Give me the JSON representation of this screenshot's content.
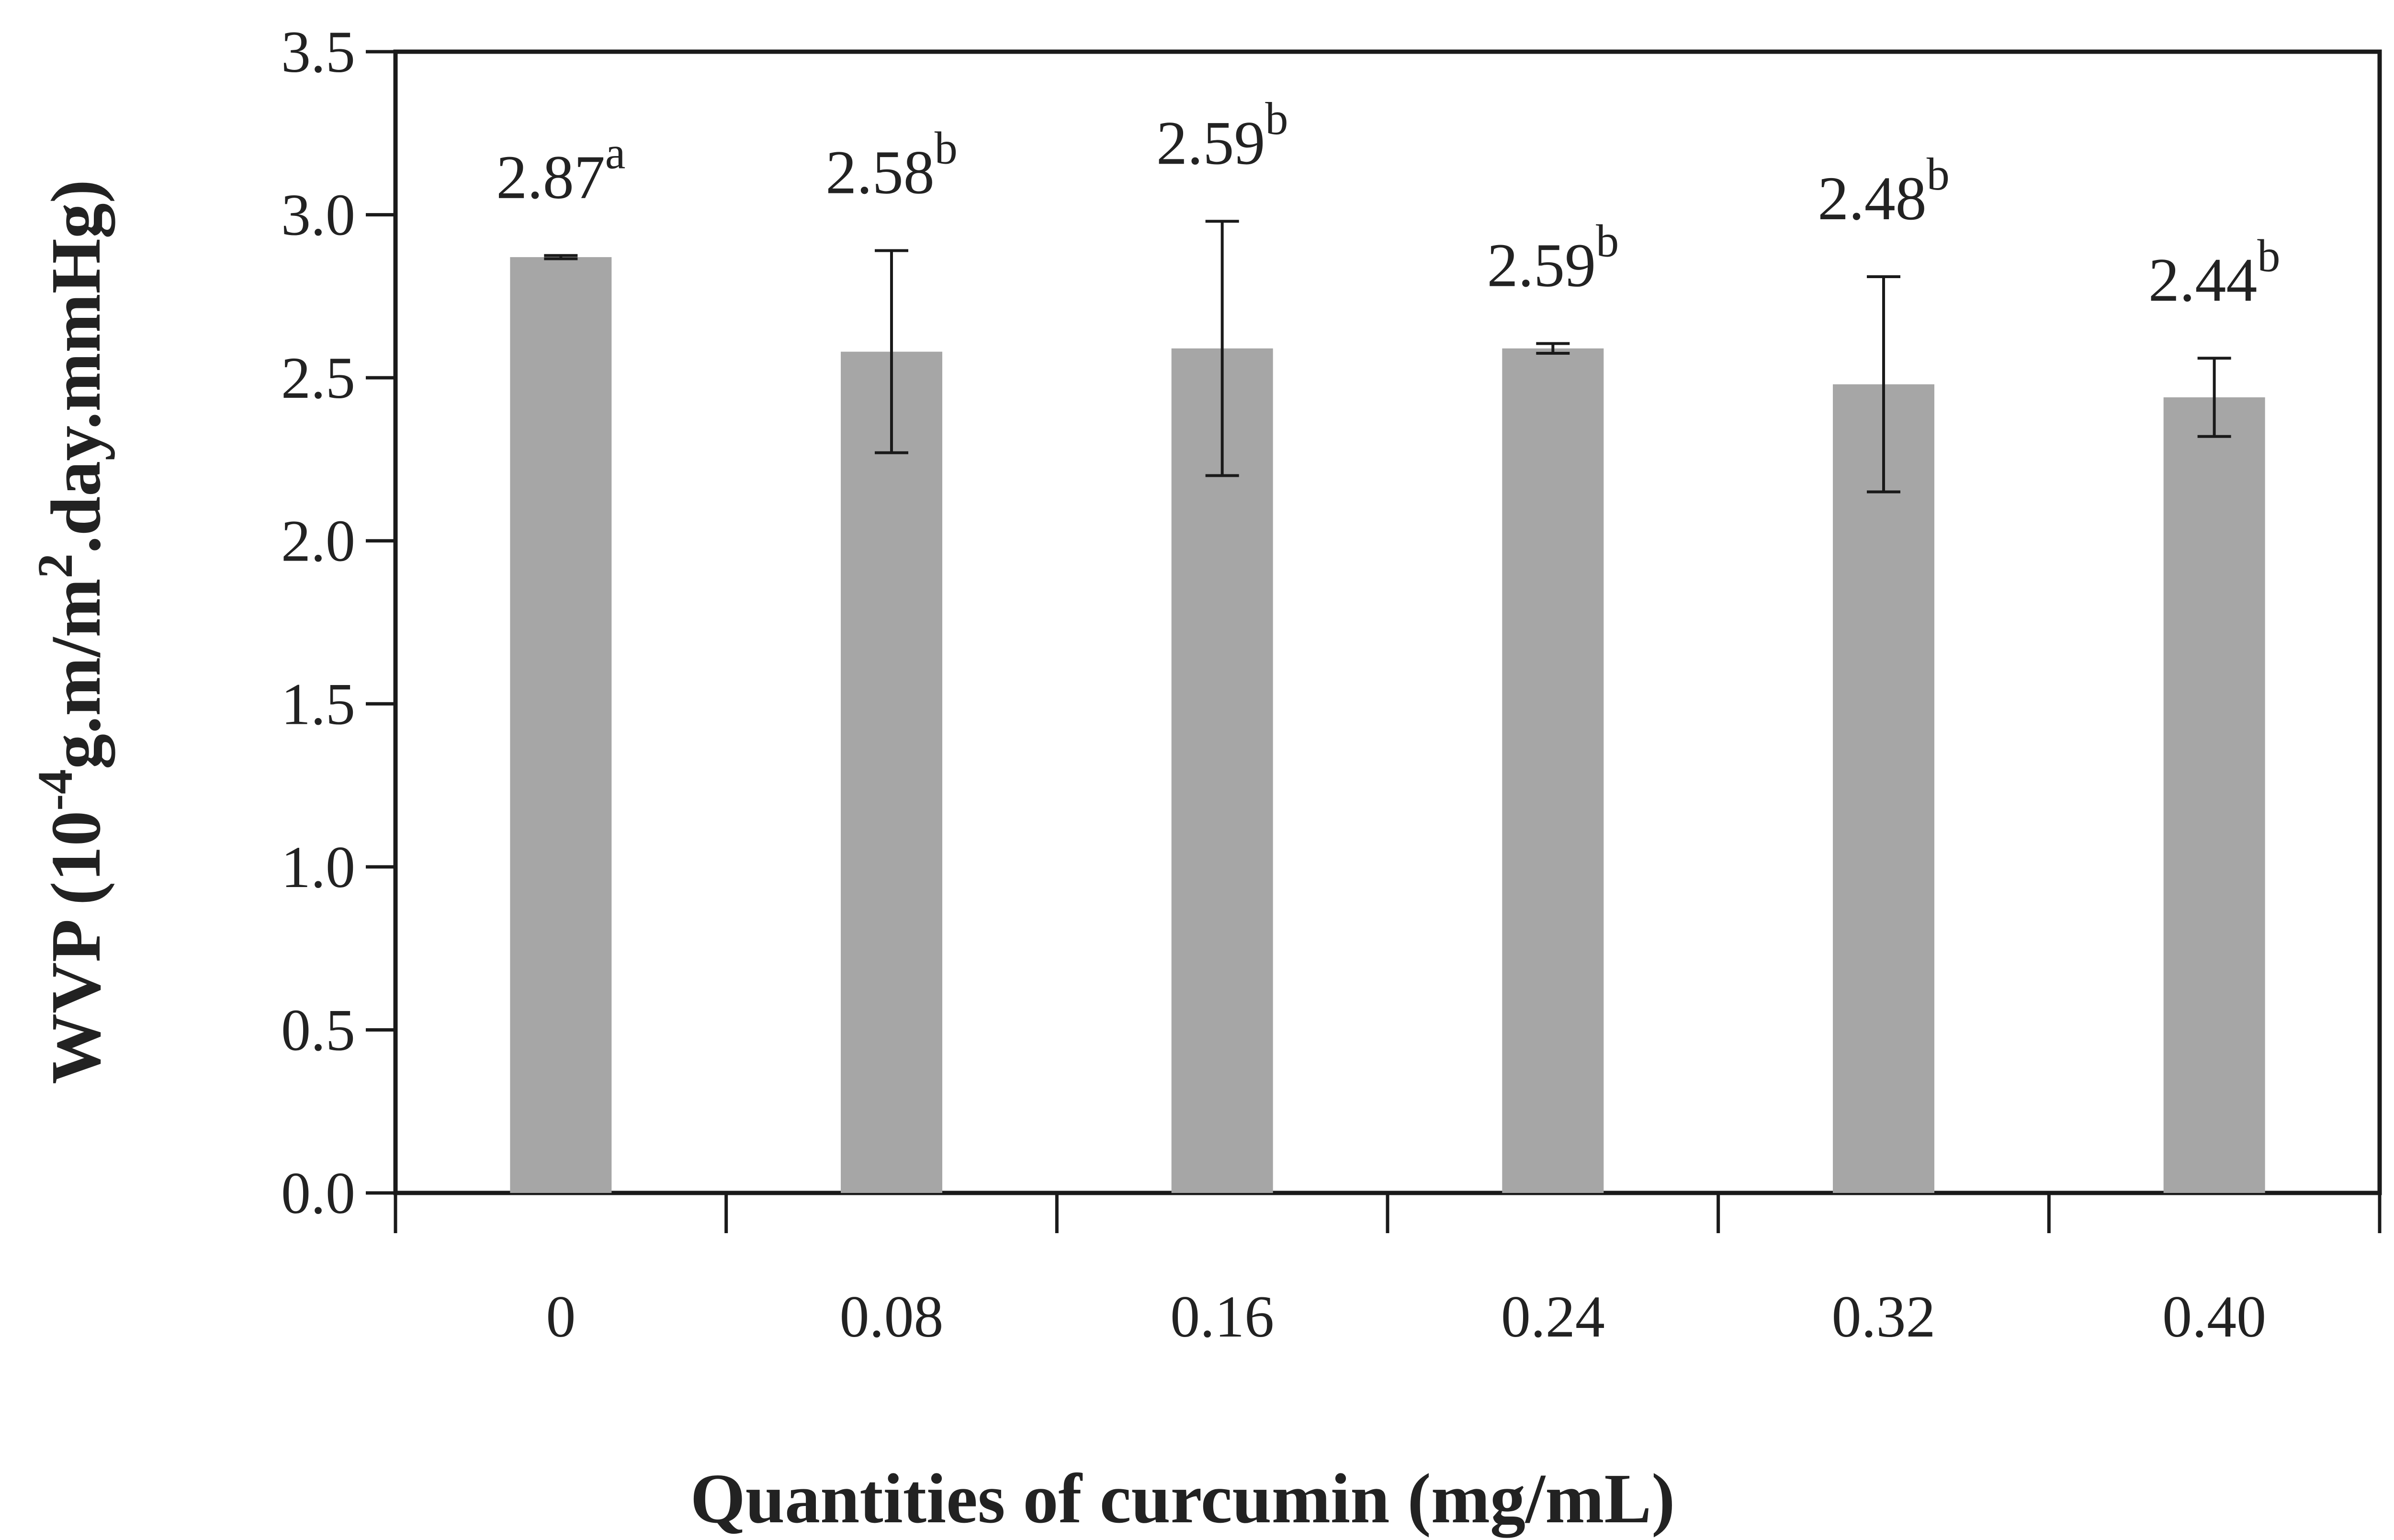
{
  "chart_data": {
    "type": "bar",
    "title": "",
    "xlabel": "Quantities of curcumin (mg/mL)",
    "ylabel": {
      "text_before_exp": "WVP (10",
      "exp1": "-4",
      "text_mid": "g.m/m",
      "exp2": "2",
      "text_after": ".day.mmHg)"
    },
    "categories": [
      "0",
      "0.08",
      "0.16",
      "0.24",
      "0.32",
      "0.40"
    ],
    "series": [
      {
        "values": [
          2.87,
          2.58,
          2.59,
          2.59,
          2.48,
          2.44
        ],
        "error": [
          0.005,
          0.31,
          0.39,
          0.015,
          0.33,
          0.12
        ],
        "labels": [
          {
            "value": "2.87",
            "sup": "a"
          },
          {
            "value": "2.58",
            "sup": "b"
          },
          {
            "value": "2.59",
            "sup": "b"
          },
          {
            "value": "2.59",
            "sup": "b"
          },
          {
            "value": "2.48",
            "sup": "b"
          },
          {
            "value": "2.44",
            "sup": "b"
          }
        ]
      }
    ],
    "ylim": [
      0,
      3.5
    ],
    "yticks": [
      "0.0",
      "0.5",
      "1.0",
      "1.5",
      "2.0",
      "2.5",
      "3.0",
      "3.5"
    ],
    "grid": false,
    "legend": "none",
    "colors": {
      "bar": "#a6a6a6",
      "axis": "#1a1a1a",
      "text": "#222222"
    }
  }
}
